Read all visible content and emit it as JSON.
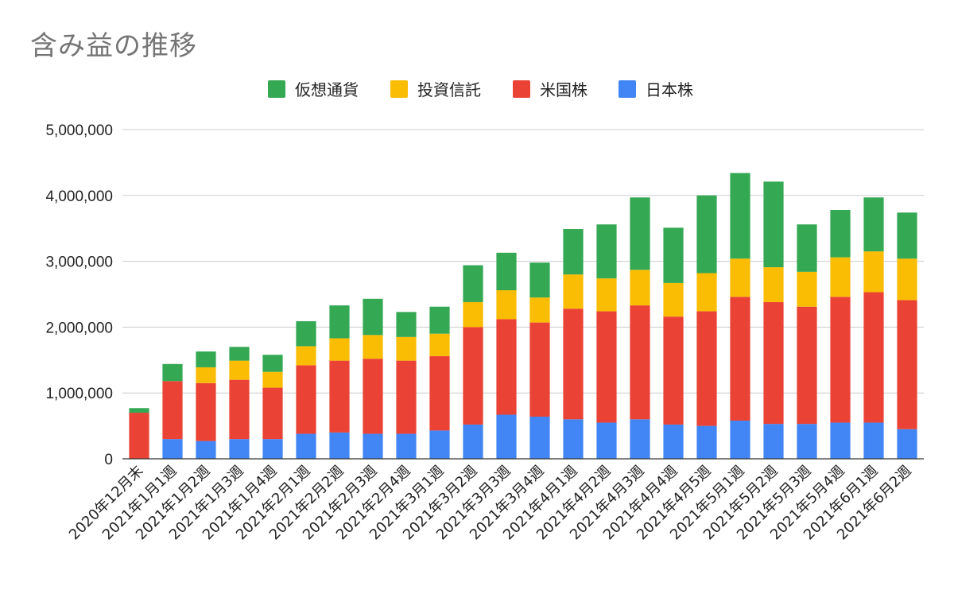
{
  "chart_data": {
    "type": "bar",
    "stacked": true,
    "title": "含み益の推移",
    "xlabel": "",
    "ylabel": "",
    "ylim": [
      0,
      5000000
    ],
    "yticks": [
      0,
      1000000,
      2000000,
      3000000,
      4000000,
      5000000
    ],
    "ytick_labels": [
      "0",
      "1,000,000",
      "2,000,000",
      "3,000,000",
      "4,000,000",
      "5,000,000"
    ],
    "grid": true,
    "legend_position": "top",
    "categories": [
      "2020年12月末",
      "2021年1月1週",
      "2021年1月2週",
      "2021年1月3週",
      "2021年1月4週",
      "2021年2月1週",
      "2021年2月2週",
      "2021年2月3週",
      "2021年2月4週",
      "2021年3月1週",
      "2021年3月2週",
      "2021年3月3週",
      "2021年3月4週",
      "2021年4月1週",
      "2021年4月2週",
      "2021年4月3週",
      "2021年4月4週",
      "2021年4月5週",
      "2021年5月1週",
      "2021年5月2週",
      "2021年5月3週",
      "2021年5月4週",
      "2021年6月1週",
      "2021年6月2週"
    ],
    "series": [
      {
        "name": "日本株",
        "color": "#4285F4",
        "values": [
          0,
          300000,
          270000,
          300000,
          300000,
          380000,
          400000,
          380000,
          380000,
          430000,
          520000,
          670000,
          640000,
          600000,
          550000,
          600000,
          520000,
          500000,
          580000,
          530000,
          530000,
          550000,
          550000,
          450000
        ]
      },
      {
        "name": "米国株",
        "color": "#EA4335",
        "values": [
          700000,
          880000,
          880000,
          900000,
          780000,
          1040000,
          1090000,
          1140000,
          1110000,
          1130000,
          1480000,
          1450000,
          1430000,
          1680000,
          1690000,
          1730000,
          1640000,
          1740000,
          1880000,
          1850000,
          1780000,
          1910000,
          1980000,
          1960000
        ]
      },
      {
        "name": "投資信託",
        "color": "#FBBC04",
        "values": [
          0,
          0,
          240000,
          290000,
          240000,
          290000,
          340000,
          360000,
          360000,
          340000,
          380000,
          440000,
          380000,
          520000,
          500000,
          540000,
          510000,
          580000,
          580000,
          530000,
          530000,
          600000,
          620000,
          630000
        ]
      },
      {
        "name": "仮想通貨",
        "color": "#34A853",
        "values": [
          70000,
          260000,
          240000,
          210000,
          260000,
          380000,
          500000,
          550000,
          380000,
          410000,
          560000,
          570000,
          530000,
          690000,
          820000,
          1100000,
          840000,
          1180000,
          1300000,
          1300000,
          720000,
          720000,
          820000,
          700000
        ]
      }
    ],
    "legend_order": [
      "仮想通貨",
      "投資信託",
      "米国株",
      "日本株"
    ]
  }
}
